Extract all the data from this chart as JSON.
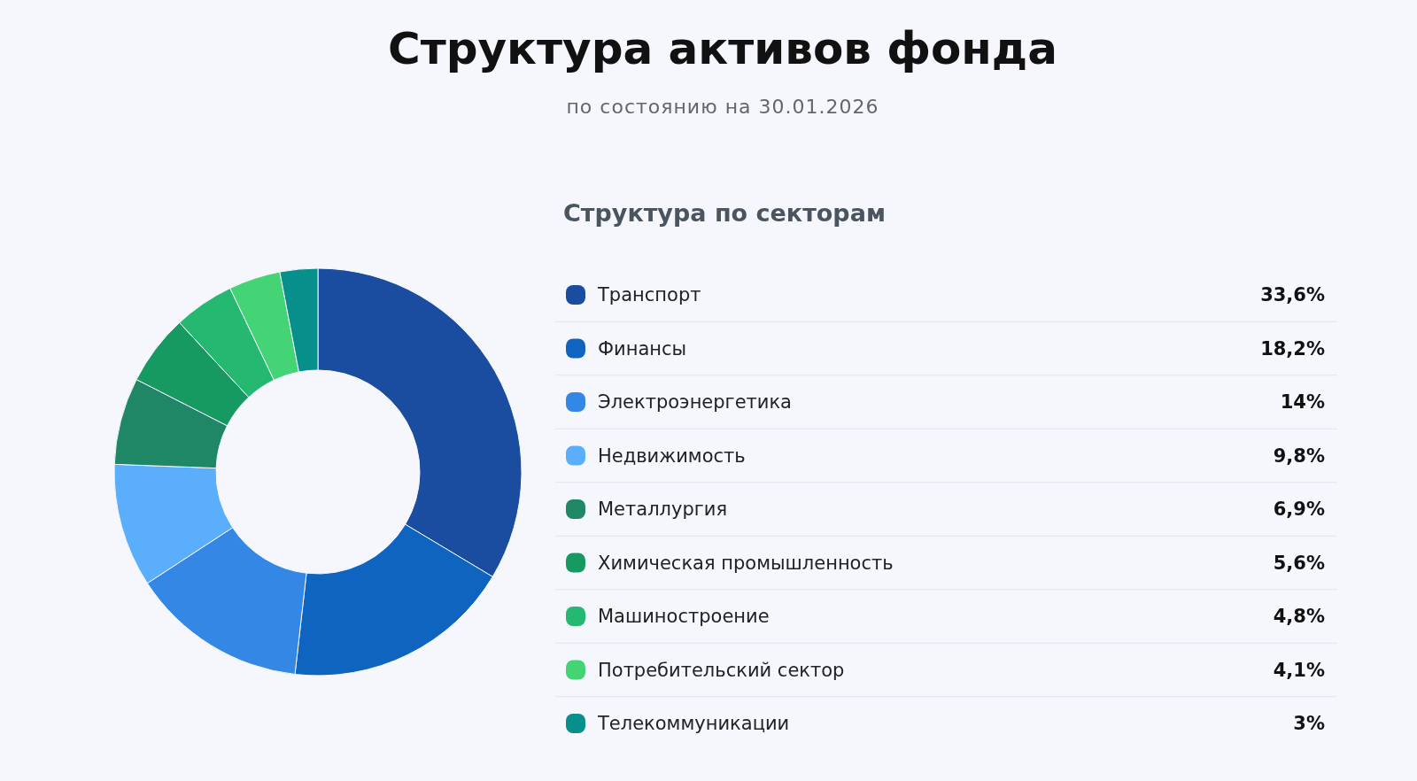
{
  "chart_data": {
    "type": "donut",
    "title": "Структура активов фонда",
    "subtitle": "по состоянию на 30.01.2026",
    "annotations": [
      "Структура по секторам"
    ],
    "categories": [
      "Транспорт",
      "Финансы",
      "Электроэнергетика",
      "Недвижимость",
      "Металлургия",
      "Химическая промышленность",
      "Машиностроение",
      "Потребительский сектор",
      "Телекоммуникации"
    ],
    "values": [
      33.6,
      18.2,
      14,
      9.8,
      6.9,
      5.6,
      4.8,
      4.1,
      3
    ],
    "value_labels": [
      "33,6%",
      "18,2%",
      "14%",
      "9,8%",
      "6,9%",
      "5,6%",
      "4,8%",
      "4,1%",
      "3%"
    ],
    "colors": [
      "#1a4da0",
      "#0f64c0",
      "#3487e4",
      "#5aaefc",
      "#1f8766",
      "#179a62",
      "#25b870",
      "#44d475",
      "#078f8c"
    ],
    "legend": "right"
  }
}
